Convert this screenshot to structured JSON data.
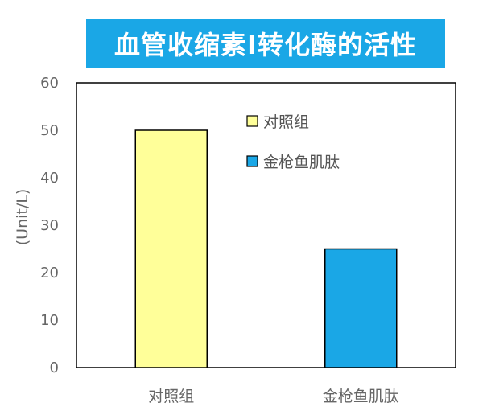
{
  "chart_data": {
    "type": "bar",
    "title": "血管收缩素I转化酶的活性",
    "ylabel": "(Unit/L)",
    "xlabel": "",
    "categories": [
      "对照组",
      "金枪鱼肌肽"
    ],
    "values": [
      50,
      25
    ],
    "colors": [
      "#ffff99",
      "#1aa7e6"
    ],
    "ylim": [
      0,
      60
    ],
    "yticks": [
      0,
      10,
      20,
      30,
      40,
      50,
      60
    ],
    "legend": {
      "position": "top-center-inside",
      "entries": [
        "对照组",
        "金枪鱼肌肽"
      ]
    },
    "grid": false
  },
  "colors": {
    "title_bg": "#1aa7e6",
    "title_text": "#ffffff",
    "axis": "#000000"
  }
}
